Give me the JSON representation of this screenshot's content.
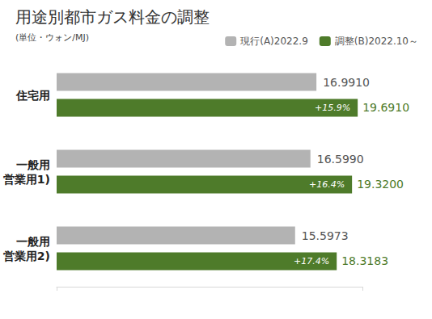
{
  "chart_data": {
    "type": "bar",
    "orientation": "horizontal",
    "title": "用途別都市ガス料金の調整",
    "subtitle": "(単位・ウォン/MJ)",
    "categories": [
      "住宅用",
      "一般用\n営業用1)",
      "一般用\n営業用2)"
    ],
    "series": [
      {
        "name": "現行(A)2022.9",
        "color": "#b3b3b3",
        "values": [
          16.991,
          16.599,
          15.5973
        ],
        "value_labels": [
          "16.9910",
          "16.5990",
          "15.5973"
        ]
      },
      {
        "name": "調整(B)2022.10～",
        "color": "#4e7b2a",
        "values": [
          19.691,
          19.32,
          18.3183
        ],
        "value_labels": [
          "19.6910",
          "19.3200",
          "18.3183"
        ],
        "change_labels": [
          "+15.9%",
          "+16.4%",
          "+17.4%"
        ]
      }
    ],
    "xlim": [
      0,
      20
    ],
    "xticks": [
      0,
      20
    ],
    "data_labels": true,
    "tick_labels": false,
    "grid": false,
    "legend": "top-right"
  }
}
